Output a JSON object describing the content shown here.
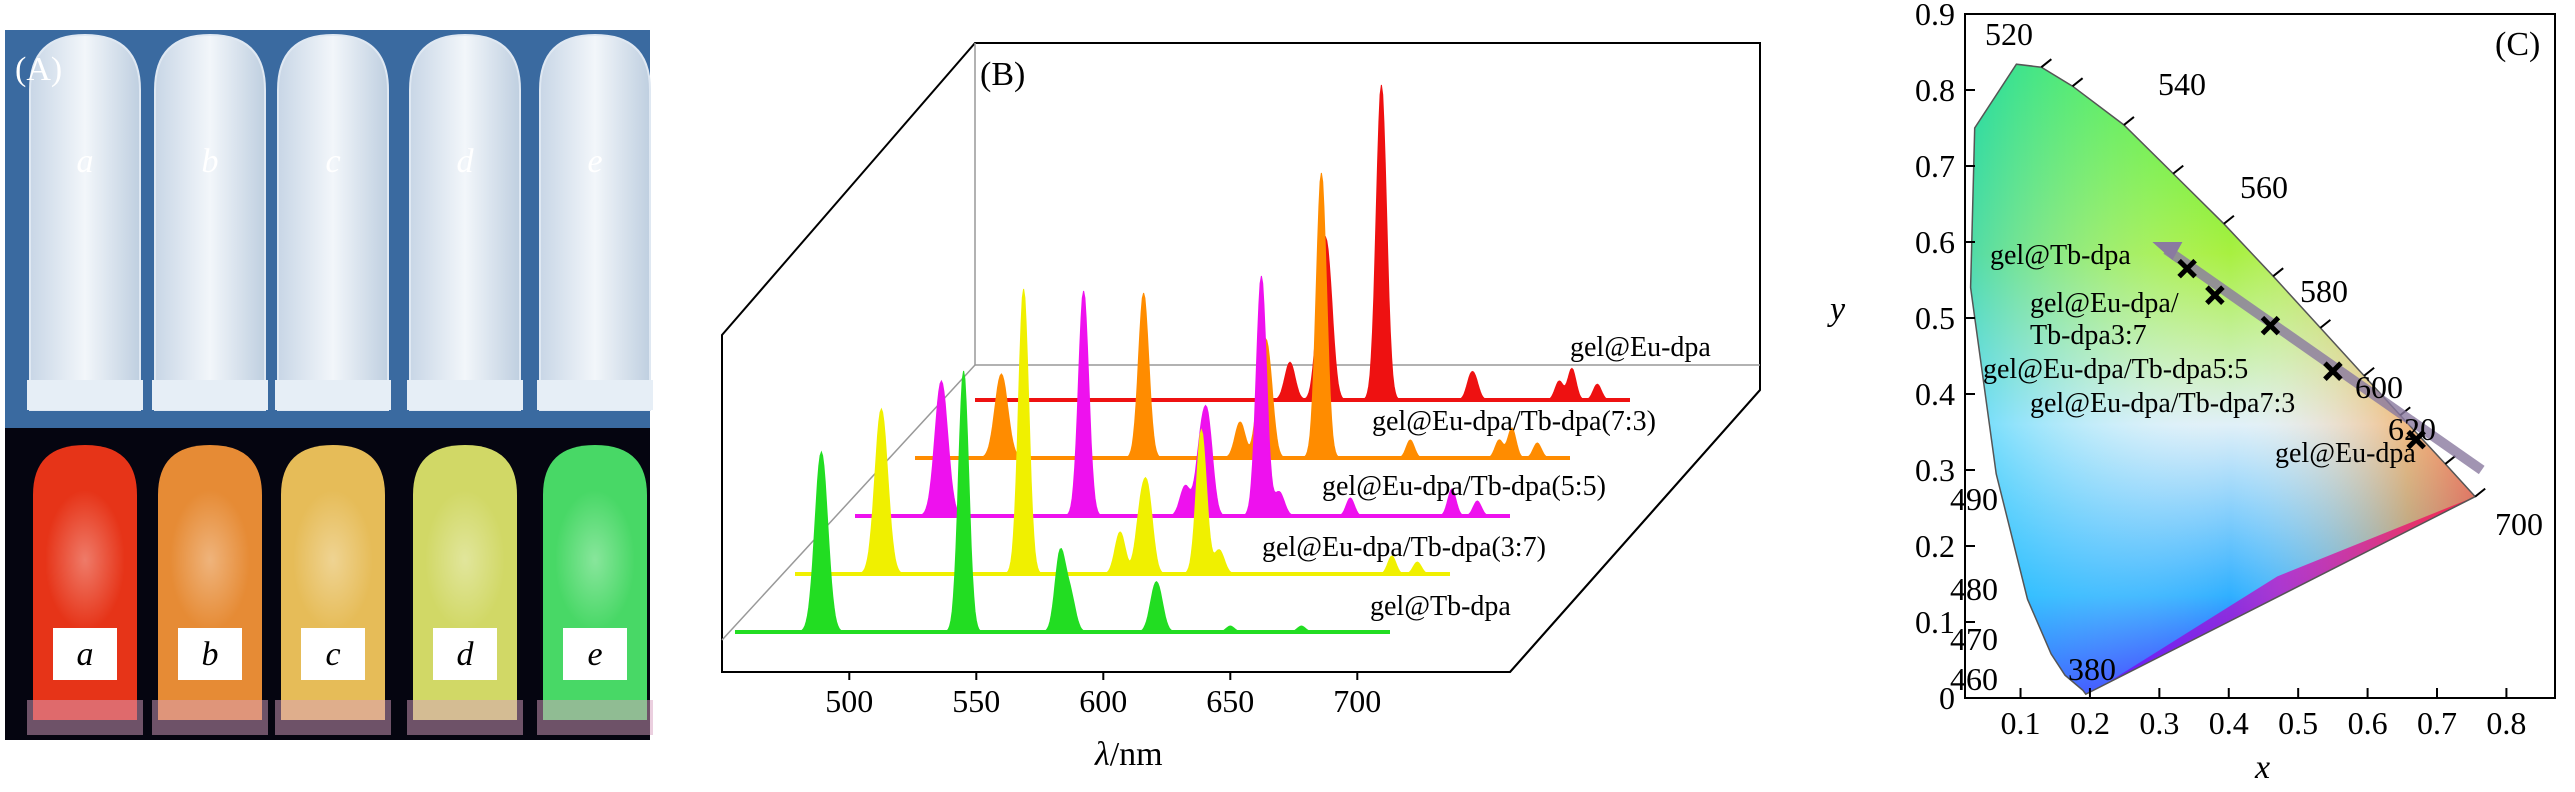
{
  "panel_a": {
    "label": "(A)",
    "daylight_labels": [
      "a",
      "b",
      "c",
      "d",
      "e"
    ],
    "uv_labels": [
      "a",
      "b",
      "c",
      "d",
      "e"
    ],
    "glow_colors": [
      "#ff3a1a",
      "#ff9a3a",
      "#ffd060",
      "#e8f070",
      "#50f070"
    ],
    "daylight_bg": "#3a6aa0",
    "uv_bg": "#050510"
  },
  "panel_b": {
    "label": "(B)",
    "xlabel_symbol": "λ",
    "xlabel_unit": "/nm",
    "ticks": [
      "500",
      "550",
      "600",
      "650",
      "700"
    ],
    "series_labels": [
      "gel@Eu-dpa",
      "gel@Eu-dpa/Tb-dpa(7:3)",
      "gel@Eu-dpa/Tb-dpa(5:5)",
      "gel@Eu-dpa/Tb-dpa(3:7)",
      "gel@Tb-dpa"
    ],
    "series_colors": [
      "#ee1111",
      "#ff8c00",
      "#ee11ee",
      "#f0f000",
      "#22dd22"
    ]
  },
  "panel_c": {
    "label": "(C)",
    "xlabel": "x",
    "ylabel": "y",
    "yticks": [
      "0",
      "0.1",
      "0.2",
      "0.3",
      "0.4",
      "0.5",
      "0.6",
      "0.7",
      "0.8",
      "0.9"
    ],
    "xticks": [
      "0.1",
      "0.2",
      "0.3",
      "0.4",
      "0.5",
      "0.6",
      "0.7",
      "0.8"
    ],
    "wavelength_labels": [
      "520",
      "540",
      "560",
      "580",
      "600",
      "620",
      "700",
      "490",
      "480",
      "470",
      "460",
      "380"
    ],
    "point_label_tb": "gel@Tb-dpa",
    "point_label_37a": "gel@Eu-dpa/",
    "point_label_37b": "Tb-dpa3:7",
    "point_label_55": "gel@Eu-dpa/Tb-dpa5:5",
    "point_label_73": "gel@Eu-dpa/Tb-dpa7:3",
    "point_label_eu": "gel@Eu-dpa"
  },
  "chart_data": {
    "type": "line",
    "title": "",
    "xlabel": "λ/nm",
    "ylabel": "",
    "xlim": [
      450,
      720
    ],
    "ticks": [
      500,
      550,
      600,
      650,
      700
    ],
    "series": [
      {
        "name": "gel@Eu-dpa",
        "peaks": [
          [
            579,
            0.12
          ],
          [
            591,
            0.3
          ],
          [
            594,
            0.38
          ],
          [
            615,
            1.0
          ],
          [
            650,
            0.06
          ],
          [
            652,
            0.05
          ],
          [
            685,
            0.06
          ],
          [
            690,
            0.1
          ],
          [
            700,
            0.05
          ]
        ]
      },
      {
        "name": "gel@Eu-dpa/Tb-dpa(7:3)",
        "peaks": [
          [
            489,
            0.28
          ],
          [
            545,
            0.55
          ],
          [
            583,
            0.12
          ],
          [
            591,
            0.22
          ],
          [
            594,
            0.3
          ],
          [
            615,
            0.95
          ],
          [
            650,
            0.06
          ],
          [
            685,
            0.06
          ],
          [
            690,
            0.1
          ],
          [
            700,
            0.05
          ]
        ]
      },
      {
        "name": "gel@Eu-dpa/Tb-dpa(5:5)",
        "peaks": [
          [
            489,
            0.45
          ],
          [
            545,
            0.75
          ],
          [
            585,
            0.1
          ],
          [
            591,
            0.2
          ],
          [
            594,
            0.28
          ],
          [
            615,
            0.8
          ],
          [
            622,
            0.08
          ],
          [
            650,
            0.06
          ],
          [
            690,
            0.09
          ],
          [
            700,
            0.05
          ]
        ]
      },
      {
        "name": "gel@Eu-dpa/Tb-dpa(3:7)",
        "peaks": [
          [
            489,
            0.55
          ],
          [
            545,
            0.95
          ],
          [
            583,
            0.14
          ],
          [
            591,
            0.18
          ],
          [
            594,
            0.24
          ],
          [
            615,
            0.48
          ],
          [
            622,
            0.08
          ],
          [
            690,
            0.06
          ],
          [
            700,
            0.04
          ]
        ]
      },
      {
        "name": "gel@Tb-dpa",
        "peaks": [
          [
            489,
            0.6
          ],
          [
            545,
            0.87
          ],
          [
            583,
            0.26
          ],
          [
            587,
            0.12
          ],
          [
            620,
            0.1
          ],
          [
            622,
            0.09
          ],
          [
            650,
            0.02
          ],
          [
            678,
            0.02
          ]
        ]
      }
    ],
    "cie": {
      "xlabel": "x",
      "ylabel": "y",
      "xlim": [
        0,
        0.85
      ],
      "ylim": [
        0,
        0.9
      ],
      "points": [
        {
          "name": "gel@Tb-dpa",
          "x": 0.32,
          "y": 0.565
        },
        {
          "name": "gel@Eu-dpa/Tb-dpa3:7",
          "x": 0.36,
          "y": 0.53
        },
        {
          "name": "gel@Eu-dpa/Tb-dpa5:5",
          "x": 0.44,
          "y": 0.49
        },
        {
          "name": "gel@Eu-dpa/Tb-dpa7:3",
          "x": 0.53,
          "y": 0.43
        },
        {
          "name": "gel@Eu-dpa",
          "x": 0.65,
          "y": 0.34
        }
      ]
    }
  }
}
